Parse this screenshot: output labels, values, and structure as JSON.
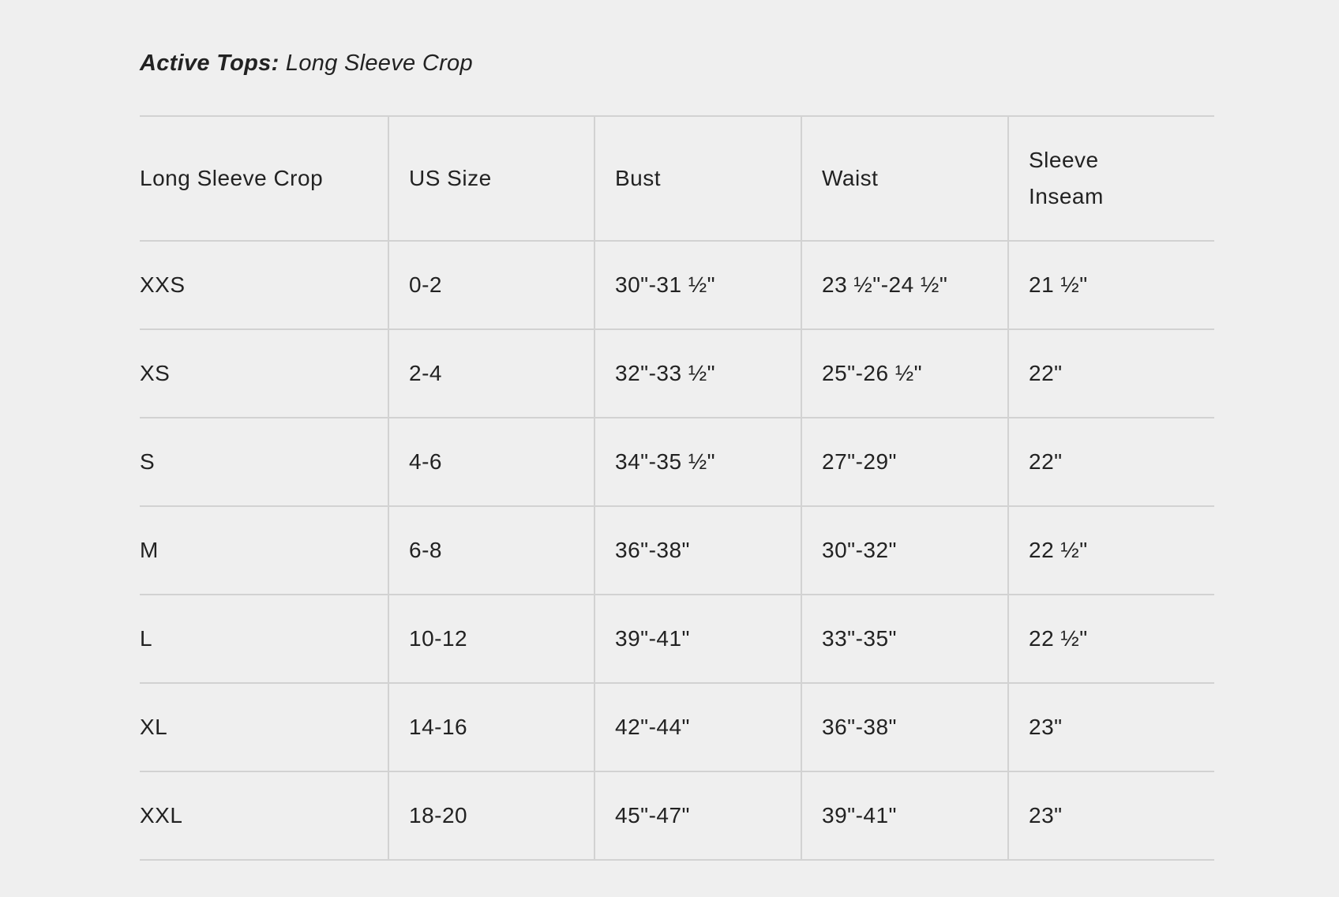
{
  "title": {
    "bold": "Active Tops:",
    "rest": "Long Sleeve Crop"
  },
  "table": {
    "headers": [
      "Long Sleeve Crop",
      "US Size",
      "Bust",
      "Waist",
      [
        "Sleeve",
        "Inseam"
      ]
    ],
    "rows": [
      [
        "XXS",
        "0-2",
        "30\"-31 ½\"",
        "23 ½\"-24 ½\"",
        "21 ½\""
      ],
      [
        "XS",
        "2-4",
        "32\"-33 ½\"",
        "25\"-26 ½\"",
        "22\""
      ],
      [
        "S",
        "4-6",
        "34\"-35 ½\"",
        "27\"-29\"",
        "22\""
      ],
      [
        "M",
        "6-8",
        "36\"-38\"",
        "30\"-32\"",
        "22 ½\""
      ],
      [
        "L",
        "10-12",
        "39\"-41\"",
        "33\"-35\"",
        "22 ½\""
      ],
      [
        "XL",
        "14-16",
        "42\"-44\"",
        "36\"-38\"",
        "23\""
      ],
      [
        "XXL",
        "18-20",
        "45\"-47\"",
        "39\"-41\"",
        "23\""
      ]
    ]
  },
  "colors": {
    "background": "#efefef",
    "text": "#222222",
    "rule": "#d2d2d2"
  }
}
